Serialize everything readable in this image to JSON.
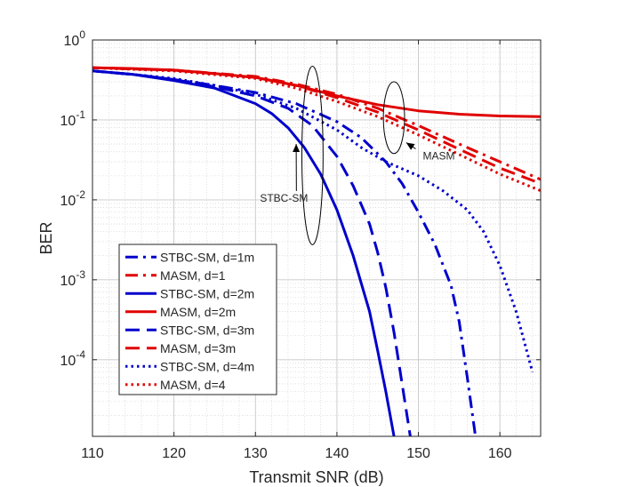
{
  "chart_data": {
    "type": "line",
    "xlabel": "Transmit SNR (dB)",
    "ylabel": "BER",
    "xlim": [
      110,
      165
    ],
    "ylim": [
      1.1e-05,
      1
    ],
    "y_scale": "log",
    "grid": true,
    "minor_grid": true,
    "legend_position": "bottom-left",
    "x_ticks": [
      110,
      120,
      130,
      140,
      150,
      160
    ],
    "y_ticks": [
      {
        "value": 1,
        "base": "10",
        "exp": "0"
      },
      {
        "value": 0.1,
        "base": "10",
        "exp": "-1"
      },
      {
        "value": 0.01,
        "base": "10",
        "exp": "-2"
      },
      {
        "value": 0.001,
        "base": "10",
        "exp": "-3"
      },
      {
        "value": 0.0001,
        "base": "10",
        "exp": "-4"
      }
    ],
    "series": [
      {
        "name": "STBC-SM, d=1m",
        "color": "#0000cc",
        "style": "dashdot",
        "x": [
          110,
          115,
          120,
          125,
          130,
          135,
          140,
          143,
          146,
          148,
          150,
          152,
          154,
          155,
          156,
          157
        ],
        "y": [
          0.41,
          0.37,
          0.32,
          0.27,
          0.22,
          0.16,
          0.095,
          0.06,
          0.03,
          0.016,
          0.007,
          0.0028,
          0.00085,
          0.0003,
          6e-05,
          1.1e-05
        ]
      },
      {
        "name": "MASM, d=1",
        "color": "#e00000",
        "style": "dashdot",
        "x": [
          110,
          120,
          130,
          135,
          140,
          145,
          150,
          155,
          160,
          165
        ],
        "y": [
          0.45,
          0.42,
          0.35,
          0.28,
          0.21,
          0.14,
          0.085,
          0.05,
          0.03,
          0.018
        ]
      },
      {
        "name": "STBC-SM, d=2m",
        "color": "#0000cc",
        "style": "solid",
        "x": [
          110,
          115,
          120,
          125,
          130,
          132,
          134,
          136,
          138,
          140,
          142,
          144,
          145,
          146,
          147
        ],
        "y": [
          0.41,
          0.37,
          0.31,
          0.25,
          0.16,
          0.12,
          0.08,
          0.045,
          0.021,
          0.0075,
          0.002,
          0.0004,
          0.00013,
          4e-05,
          1.1e-05
        ]
      },
      {
        "name": "MASM, d=2m",
        "color": "#e00000",
        "style": "solid",
        "x": [
          110,
          115,
          120,
          125,
          130,
          135,
          140,
          145,
          150,
          155,
          160,
          165
        ],
        "y": [
          0.45,
          0.44,
          0.42,
          0.38,
          0.34,
          0.27,
          0.2,
          0.155,
          0.13,
          0.118,
          0.112,
          0.11
        ]
      },
      {
        "name": "STBC-SM, d=3m",
        "color": "#0000cc",
        "style": "dashed",
        "x": [
          110,
          115,
          120,
          125,
          130,
          134,
          137,
          140,
          142,
          144,
          145,
          146,
          147,
          148,
          149
        ],
        "y": [
          0.41,
          0.37,
          0.32,
          0.26,
          0.2,
          0.14,
          0.085,
          0.035,
          0.015,
          0.005,
          0.0022,
          0.0008,
          0.00022,
          5e-05,
          1.1e-05
        ]
      },
      {
        "name": "MASM, d=3m",
        "color": "#e00000",
        "style": "dashed",
        "x": [
          110,
          120,
          130,
          135,
          140,
          145,
          150,
          155,
          160,
          165
        ],
        "y": [
          0.45,
          0.42,
          0.34,
          0.27,
          0.19,
          0.125,
          0.075,
          0.043,
          0.025,
          0.016
        ]
      },
      {
        "name": "STBC-SM, d=4m",
        "color": "#0000cc",
        "style": "dotted",
        "x": [
          110,
          115,
          120,
          125,
          130,
          135,
          140,
          143,
          146,
          150,
          153,
          156,
          158,
          160,
          162,
          164
        ],
        "y": [
          0.41,
          0.37,
          0.33,
          0.27,
          0.21,
          0.14,
          0.075,
          0.045,
          0.03,
          0.02,
          0.013,
          0.0075,
          0.004,
          0.0015,
          0.0004,
          7e-05
        ]
      },
      {
        "name": "MASM, d=4",
        "color": "#e00000",
        "style": "dotted",
        "x": [
          110,
          120,
          130,
          135,
          140,
          145,
          150,
          155,
          160,
          165
        ],
        "y": [
          0.45,
          0.41,
          0.33,
          0.25,
          0.17,
          0.11,
          0.065,
          0.037,
          0.021,
          0.013
        ]
      }
    ],
    "annotations": [
      {
        "text": "STBC-SM",
        "ellipse_center": [
          137,
          0.035
        ],
        "ellipse_rx_db": 1.3,
        "ellipse_y_range": [
          0.00275,
          0.47
        ],
        "arrow_to": [
          135,
          0.05
        ],
        "text_pos": [
          133.5,
          0.0095
        ]
      },
      {
        "text": "MASM",
        "ellipse_center": [
          147,
          0.12
        ],
        "ellipse_rx_db": 1.3,
        "ellipse_y_range": [
          0.038,
          0.3
        ],
        "arrow_to": [
          148.5,
          0.052
        ],
        "text_pos": [
          152.5,
          0.032
        ]
      }
    ]
  }
}
